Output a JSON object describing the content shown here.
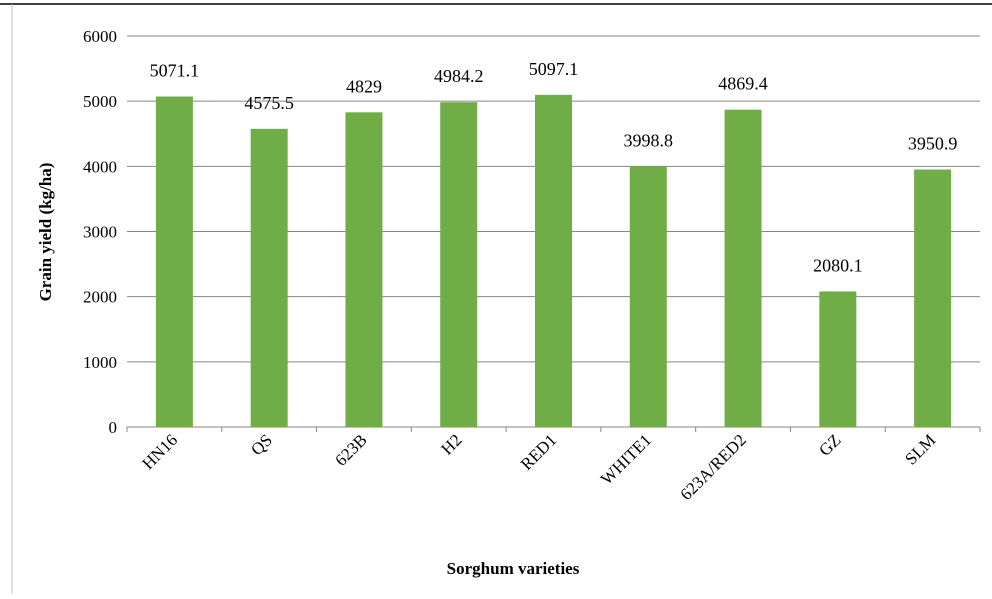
{
  "chart_data": {
    "type": "bar",
    "title": "",
    "xlabel": "Sorghum varieties",
    "ylabel": "Grain yield (kg/ha)",
    "categories": [
      "HN16",
      "QS",
      "623B",
      "H2",
      "RED1",
      "WHITE1",
      "623A/RED2",
      "GZ",
      "SLM"
    ],
    "values": [
      5071.1,
      4575.5,
      4829,
      4984.2,
      5097.1,
      3998.8,
      4869.4,
      2080.1,
      3950.9
    ],
    "data_labels": [
      "5071.1",
      "4575.5",
      "4829",
      "4984.2",
      "5097.1",
      "3998.8",
      "4869.4",
      "2080.1",
      "3950.9"
    ],
    "ylim": [
      0,
      6000
    ],
    "yticks": [
      0,
      1000,
      2000,
      3000,
      4000,
      5000,
      6000
    ],
    "ytick_labels": [
      "0",
      "1000",
      "2000",
      "3000",
      "4000",
      "5000",
      "6000"
    ],
    "grid": true,
    "legend": "none",
    "bar_color": "#70AD47",
    "grid_color": "#868686"
  }
}
